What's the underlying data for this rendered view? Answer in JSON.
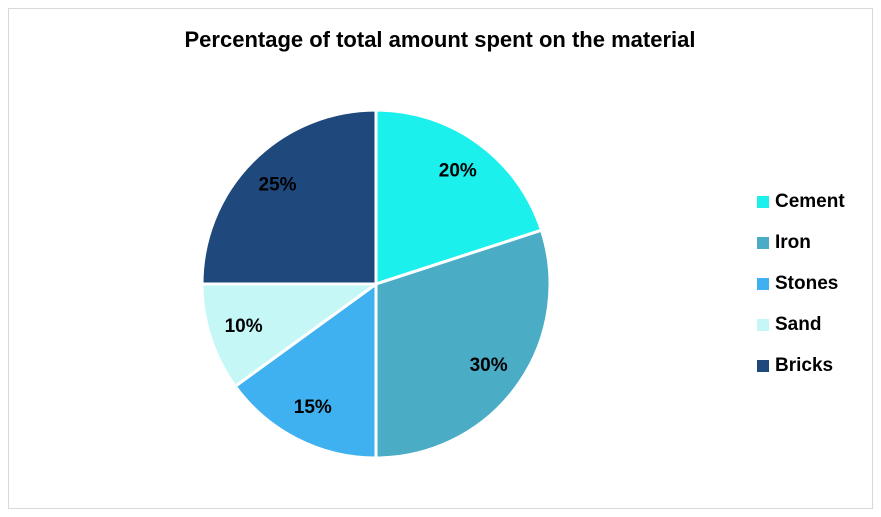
{
  "chart_data": {
    "type": "pie",
    "title": "Percentage of total amount spent on the material",
    "categories": [
      "Cement",
      "Iron",
      "Stones",
      "Sand",
      "Bricks"
    ],
    "values": [
      20,
      30,
      15,
      10,
      25
    ],
    "value_labels": [
      "20%",
      "30%",
      "15%",
      "10%",
      "25%"
    ],
    "colors": [
      "#1cf0ec",
      "#4bacc6",
      "#3fb1f0",
      "#c6f7f7",
      "#1f497d"
    ],
    "legend": "right"
  }
}
